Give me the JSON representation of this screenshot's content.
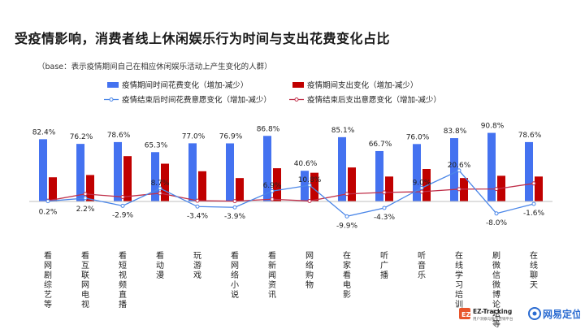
{
  "header": {
    "title": "受疫情影响，消费者线上休闲娱乐行为时间与支出花费变化占比",
    "base_note": "（base：表示疫情期间自己在相应休闲娱乐活动上产生变化的人群）"
  },
  "branding": {
    "logo_left_text": "EZ-Tracking",
    "logo_left_sub": "用户洞察与数字营销平台",
    "logo_right_text": "网易定位"
  },
  "colors": {
    "blue": "#4472f0",
    "red": "#c00000",
    "line_blue": "#4a86e8",
    "line_red": "#c0304a"
  },
  "chart_data": {
    "type": "bar",
    "categories": [
      "看网剧综艺等",
      "看互联网电视",
      "看短视频直播",
      "看动漫",
      "玩游戏",
      "看网络小说",
      "看新闻资讯",
      "网络购物",
      "在家看电影",
      "听广播",
      "听音乐",
      "在线学习培训",
      "刷微信微博论坛等",
      "在线聊天"
    ],
    "series": [
      {
        "name": "疫情期间时间花费变化（增加-减少）",
        "kind": "bar",
        "values": [
          82.4,
          76.2,
          78.6,
          65.3,
          77.0,
          76.9,
          86.8,
          40.6,
          85.1,
          66.7,
          76.0,
          83.8,
          90.8,
          78.6
        ]
      },
      {
        "name": "疫情期间支出变化（增加-减少）",
        "kind": "bar",
        "values": [
          32.0,
          35.0,
          60.0,
          50.0,
          40.0,
          31.0,
          44.0,
          38.0,
          45.0,
          33.0,
          43.0,
          31.0,
          34.0,
          33.0
        ]
      },
      {
        "name": "疫情结束后时间花费意愿变化（增加-减少）",
        "kind": "line",
        "values": [
          0.2,
          2.2,
          -2.9,
          8.7,
          -3.4,
          -3.9,
          6.9,
          10.8,
          -9.9,
          -4.3,
          9.0,
          20.6,
          -8.0,
          -1.6
        ]
      },
      {
        "name": "疫情结束后支出意愿变化（增加-减少）",
        "kind": "line",
        "values": [
          0.5,
          5.0,
          3.0,
          5.5,
          0.5,
          0.2,
          1.5,
          0.3,
          5.0,
          6.0,
          6.5,
          8.2,
          8.3,
          12.0
        ]
      }
    ],
    "data_labels": {
      "bar_blue": [
        "82.4%",
        "76.2%",
        "78.6%",
        "65.3%",
        "77.0%",
        "76.9%",
        "86.8%",
        "40.6%",
        "85.1%",
        "66.7%",
        "76.0%",
        "83.8%",
        "90.8%",
        "78.6%"
      ],
      "line_blue": [
        "0.2%",
        "2.2%",
        "-2.9%",
        "8.7%",
        "-3.4%",
        "-3.9%",
        "6.9%",
        "10.8%",
        "-9.9%",
        "-4.3%",
        "9.0%",
        "20.6%",
        "-8.0%",
        "-1.6%"
      ]
    },
    "legend_position": "top",
    "grid": false
  }
}
